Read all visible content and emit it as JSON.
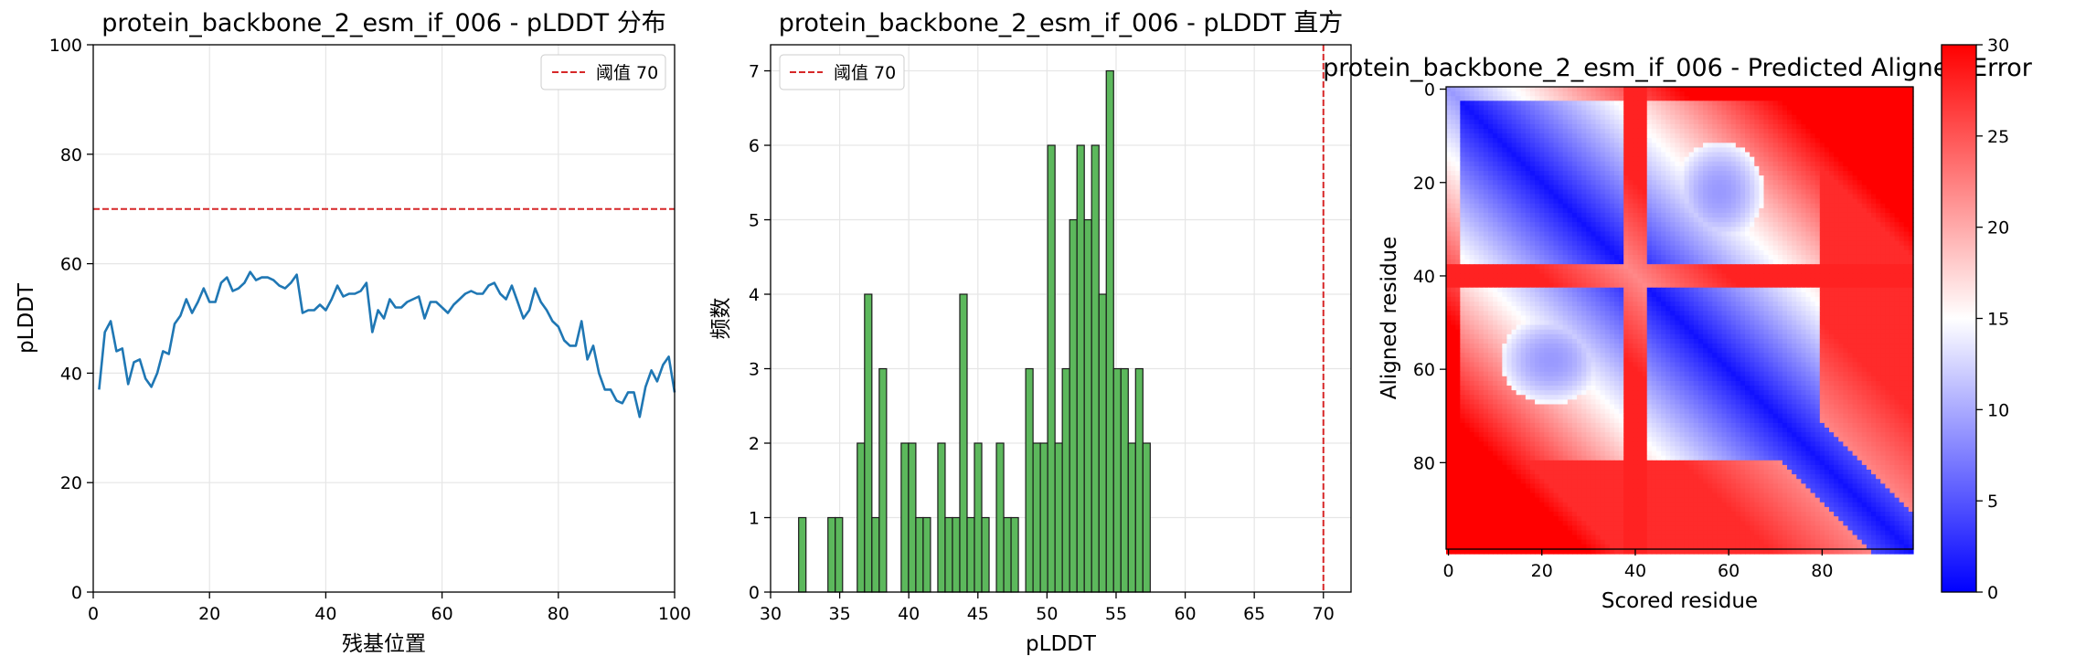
{
  "colors": {
    "line": "#1f77b4",
    "threshold": "#d62728",
    "hist_fill": "#5cb85c",
    "hist_edge": "#1a1a1a",
    "grid": "#e6e6e6",
    "cmap_low": "#0000ff",
    "cmap_mid": "#ffffff",
    "cmap_high": "#ff0000"
  },
  "chart_data": [
    {
      "type": "line",
      "title": "protein_backbone_2_esm_if_006 - pLDDT 分布",
      "xlabel": "残基位置",
      "ylabel": "pLDDT",
      "xlim": [
        0,
        100
      ],
      "ylim": [
        0,
        100
      ],
      "xticks": [
        0,
        20,
        40,
        60,
        80,
        100
      ],
      "yticks": [
        0,
        20,
        40,
        60,
        80,
        100
      ],
      "grid": true,
      "legend": {
        "position": "top-right",
        "entries": [
          "阈值 70"
        ]
      },
      "threshold": 70,
      "series": [
        {
          "x": [
            1,
            2,
            3,
            4,
            5,
            6,
            7,
            8,
            9,
            10,
            11,
            12,
            13,
            14,
            15,
            16,
            17,
            18,
            19,
            20,
            21,
            22,
            23,
            24,
            25,
            26,
            27,
            28,
            29,
            30,
            31,
            32,
            33,
            34,
            35,
            36,
            37,
            38,
            39,
            40,
            41,
            42,
            43,
            44,
            45,
            46,
            47,
            48,
            49,
            50,
            51,
            52,
            53,
            54,
            55,
            56,
            57,
            58,
            59,
            60,
            61,
            62,
            63,
            64,
            65,
            66,
            67,
            68,
            69,
            70,
            71,
            72,
            73,
            74,
            75,
            76,
            77,
            78,
            79,
            80,
            81,
            82,
            83,
            84,
            85,
            86,
            87,
            88,
            89,
            90,
            91,
            92,
            93,
            94,
            95,
            96,
            97,
            98,
            99,
            100
          ],
          "values": [
            37.0,
            47.5,
            49.5,
            44.0,
            44.5,
            38.0,
            42.0,
            42.5,
            39.0,
            37.5,
            40.0,
            44.0,
            43.5,
            49.0,
            50.5,
            53.5,
            51.0,
            53.0,
            55.5,
            53.0,
            53.0,
            56.5,
            57.5,
            55.0,
            55.5,
            56.5,
            58.5,
            57.0,
            57.5,
            57.5,
            57.0,
            56.0,
            55.5,
            56.5,
            58.0,
            51.0,
            51.5,
            51.5,
            52.5,
            51.5,
            53.5,
            56.0,
            54.0,
            54.5,
            54.5,
            55.0,
            56.5,
            47.5,
            51.5,
            50.0,
            53.5,
            52.0,
            52.0,
            53.0,
            53.5,
            54.0,
            50.0,
            53.0,
            53.0,
            52.0,
            51.0,
            52.5,
            53.5,
            54.5,
            55.0,
            54.5,
            54.5,
            56.0,
            56.5,
            54.5,
            53.5,
            56.0,
            53.0,
            50.0,
            51.5,
            55.5,
            53.0,
            51.5,
            49.5,
            48.5,
            46.0,
            45.0,
            45.0,
            49.5,
            42.5,
            45.0,
            40.0,
            37.0,
            37.0,
            35.0,
            34.5,
            36.5,
            36.5,
            32.0,
            37.5,
            40.5,
            38.5,
            41.5,
            43.0,
            36.5
          ]
        }
      ]
    },
    {
      "type": "bar",
      "title": "protein_backbone_2_esm_if_006 - pLDDT 直方",
      "xlabel": "pLDDT",
      "ylabel": "频数",
      "xlim": [
        30,
        72
      ],
      "ylim": [
        0,
        7.35
      ],
      "xticks": [
        30,
        35,
        40,
        45,
        50,
        55,
        60,
        65,
        70
      ],
      "yticks": [
        0,
        1,
        2,
        3,
        4,
        5,
        6,
        7
      ],
      "grid": true,
      "legend": {
        "position": "top-left",
        "entries": [
          "阈值 70"
        ]
      },
      "threshold": 70,
      "bin_edges_start": 31.5,
      "bin_width": 0.53,
      "counts": [
        0,
        1,
        0,
        0,
        0,
        1,
        1,
        0,
        0,
        2,
        4,
        1,
        3,
        0,
        0,
        2,
        2,
        1,
        1,
        0,
        2,
        1,
        1,
        4,
        1,
        2,
        1,
        0,
        2,
        1,
        1,
        0,
        3,
        2,
        2,
        6,
        2,
        3,
        5,
        6,
        5,
        6,
        4,
        7,
        3,
        3,
        2,
        3,
        2
      ]
    },
    {
      "type": "heatmap",
      "title": "protein_backbone_2_esm_if_006 - Predicted Aligned Error",
      "xlabel": "Scored residue",
      "ylabel": "Aligned residue",
      "xticks": [
        0,
        20,
        40,
        60,
        80
      ],
      "yticks": [
        0,
        20,
        40,
        60,
        80
      ],
      "size": 100,
      "colorbar": {
        "min": 0,
        "max": 30,
        "ticks": [
          0,
          5,
          10,
          15,
          20,
          25,
          30
        ]
      }
    }
  ]
}
